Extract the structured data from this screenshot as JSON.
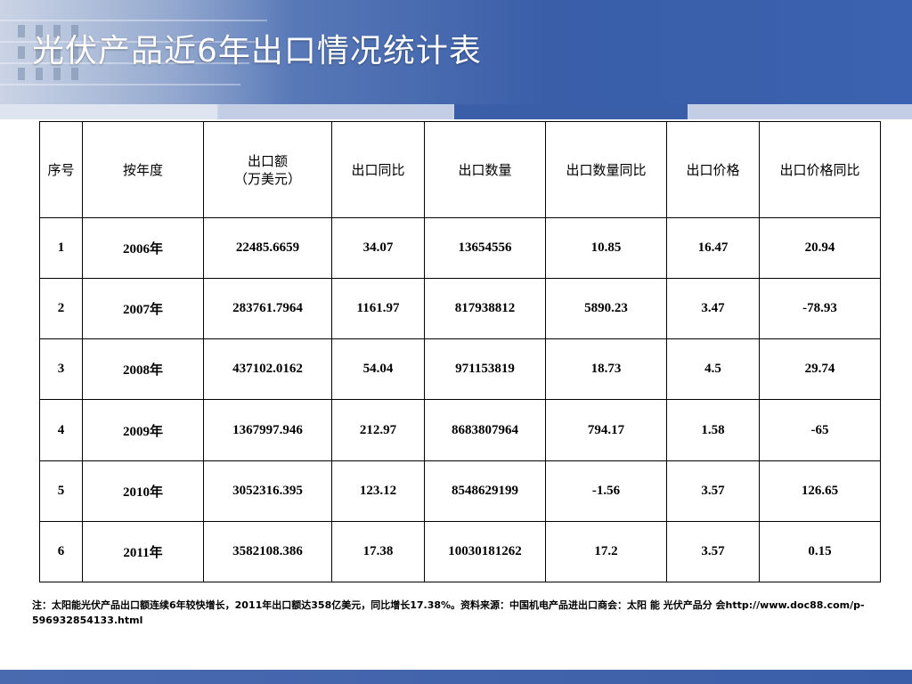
{
  "title": "光伏产品近6年出口情况统计表",
  "table": {
    "headers": [
      "序号",
      "按年度",
      "出口额\n（万美元）",
      "出口同比",
      "出口数量",
      "出口数量同比",
      "出口价格",
      "出口价格同比"
    ],
    "rows": [
      [
        "1",
        "2006年",
        "22485.6659",
        "34.07",
        "13654556",
        "10.85",
        "16.47",
        "20.94"
      ],
      [
        "2",
        "2007年",
        "283761.7964",
        "1161.97",
        "817938812",
        "5890.23",
        "3.47",
        "-78.93"
      ],
      [
        "3",
        "2008年",
        "437102.0162",
        "54.04",
        "971153819",
        "18.73",
        "4.5",
        "29.74"
      ],
      [
        "4",
        "2009年",
        "1367997.946",
        "212.97",
        "8683807964",
        "794.17",
        "1.58",
        "-65"
      ],
      [
        "5",
        "2010年",
        "3052316.395",
        "123.12",
        "8548629199",
        "-1.56",
        "3.57",
        "126.65"
      ],
      [
        "6",
        "2011年",
        "3582108.386",
        "17.38",
        "10030181262",
        "17.2",
        "3.57",
        "0.15"
      ]
    ]
  },
  "note": "注：太阳能光伏产品出口额连续6年较快增长，2011年出口额达358亿美元，同比增长17.38%。资料来源：中国机电产品进出口商会：太阳 能 光伏产品分  会http://www.doc88.com/p-596932854133.html",
  "colors": {
    "header_blue": "#3a5ea8",
    "strip_light": "#c9d3e6",
    "strip_dark": "#3a5ea8"
  }
}
